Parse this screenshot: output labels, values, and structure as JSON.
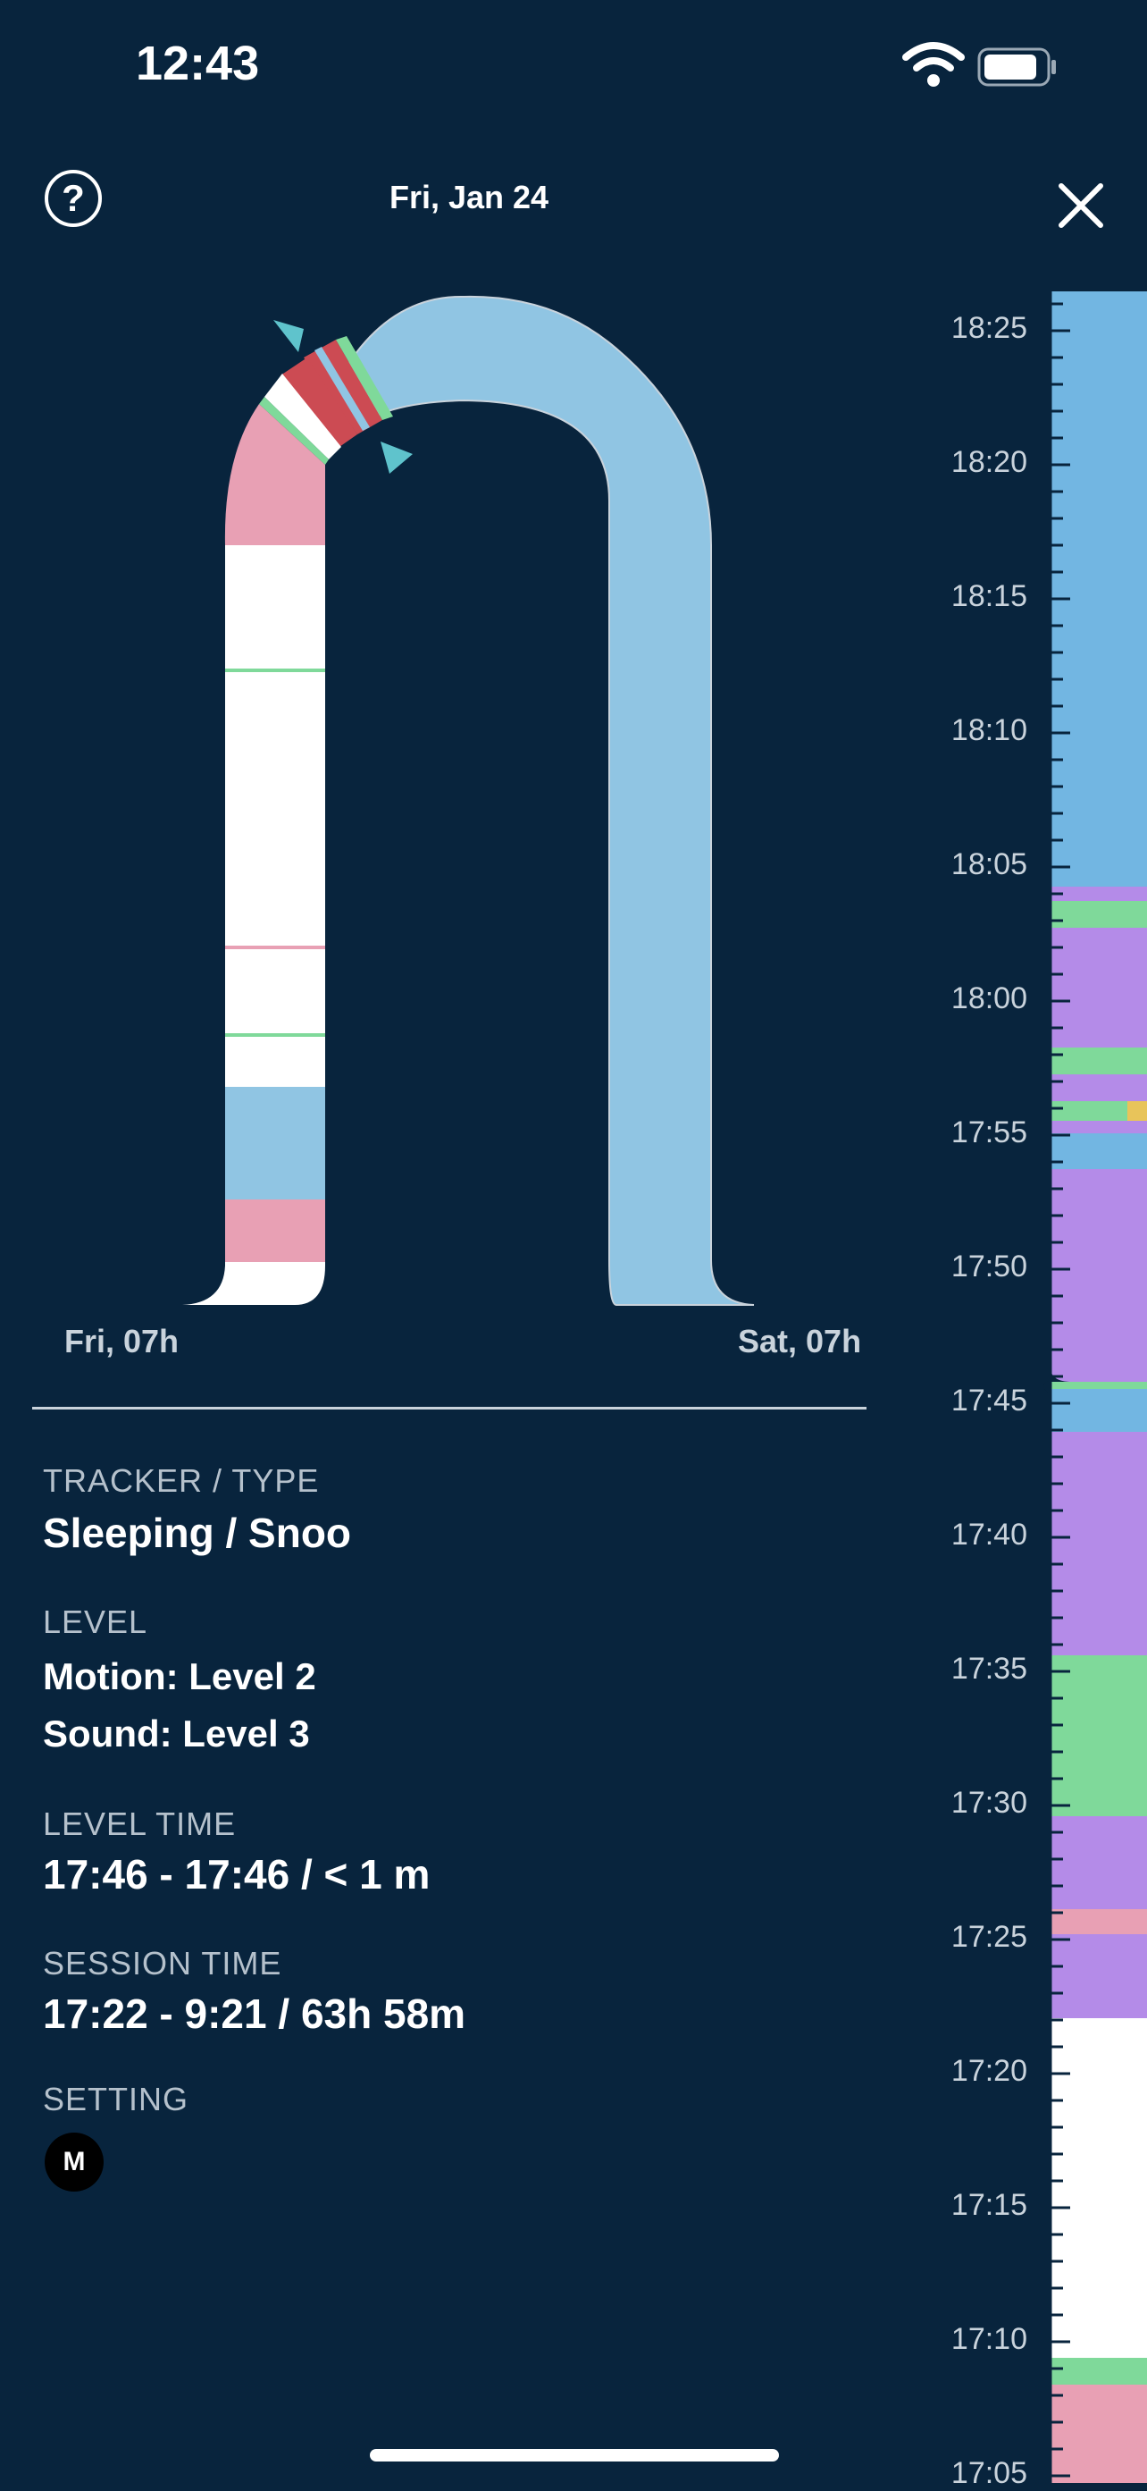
{
  "status_bar": {
    "time": "12:43",
    "wifi_icon": "wifi-icon",
    "battery_icon": "battery-icon"
  },
  "header": {
    "help_icon": "question-circle-icon",
    "help_glyph": "?",
    "date": "Fri, Jan 24",
    "close_icon": "close-icon"
  },
  "arc": {
    "start_label": "Fri, 07h",
    "end_label": "Sat, 07h"
  },
  "details": {
    "tracker_label": "TRACKER / TYPE",
    "tracker_value": "Sleeping / Snoo",
    "level_label": "LEVEL",
    "motion": "Motion: Level 2",
    "sound": "Sound: Level 3",
    "level_time_label": "LEVEL TIME",
    "level_time_value": "17:46 - 17:46 / < 1 m",
    "session_time_label": "SESSION TIME",
    "session_time_value": "17:22 - 9:21 / 63h 58m",
    "setting_label": "SETTING",
    "setting_badge": "M"
  },
  "timeline": {
    "ticks": [
      "18:25",
      "18:20",
      "18:15",
      "18:10",
      "18:05",
      "18:00",
      "17:55",
      "17:50",
      "17:45",
      "17:40",
      "17:35",
      "17:30",
      "17:25",
      "17:20",
      "17:15",
      "17:10",
      "17:05"
    ]
  },
  "colors": {
    "background": "#08243d",
    "light_blue": "#90c5e3",
    "blue": "#72b6e2",
    "pink": "#e8a0b4",
    "green": "#7fd99a",
    "purple": "#b48be8",
    "red": "#cc4b53",
    "yellow": "#e8c45a",
    "teal_marker": "#5fc3cc"
  }
}
